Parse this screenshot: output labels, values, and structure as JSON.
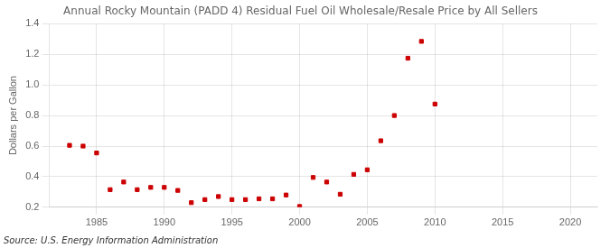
{
  "chart_data": {
    "type": "scatter",
    "title": "Annual Rocky Mountain (PADD 4) Residual Fuel Oil Wholesale/Resale Price by All Sellers",
    "ylabel": "Dollars per Gallon",
    "source": "Source: U.S. Energy Information Administration",
    "color": "#cc0000",
    "marker": "square",
    "grid": true,
    "xlim": [
      1981.5,
      2022
    ],
    "ylim": [
      0.2,
      1.4
    ],
    "xticks": [
      1985,
      1990,
      1995,
      2000,
      2005,
      2010,
      2015,
      2020
    ],
    "yticks": [
      0.2,
      0.4,
      0.6,
      0.8,
      {
        "value": 1.0,
        "label": "1.0"
      },
      1.2,
      1.4
    ],
    "x": [
      1983,
      1984,
      1985,
      1986,
      1987,
      1988,
      1989,
      1990,
      1991,
      1992,
      1993,
      1994,
      1995,
      1996,
      1997,
      1998,
      1999,
      2000,
      2001,
      2002,
      2003,
      2004,
      2005,
      2006,
      2007,
      2008,
      2009,
      2010
    ],
    "values": [
      0.605,
      0.6,
      0.555,
      0.315,
      0.365,
      0.315,
      0.33,
      0.33,
      0.31,
      0.23,
      0.25,
      0.27,
      0.25,
      0.25,
      0.255,
      0.255,
      0.28,
      0.205,
      0.395,
      0.365,
      0.285,
      0.415,
      0.445,
      0.635,
      0.8,
      1.175,
      1.285,
      0.875
    ]
  }
}
